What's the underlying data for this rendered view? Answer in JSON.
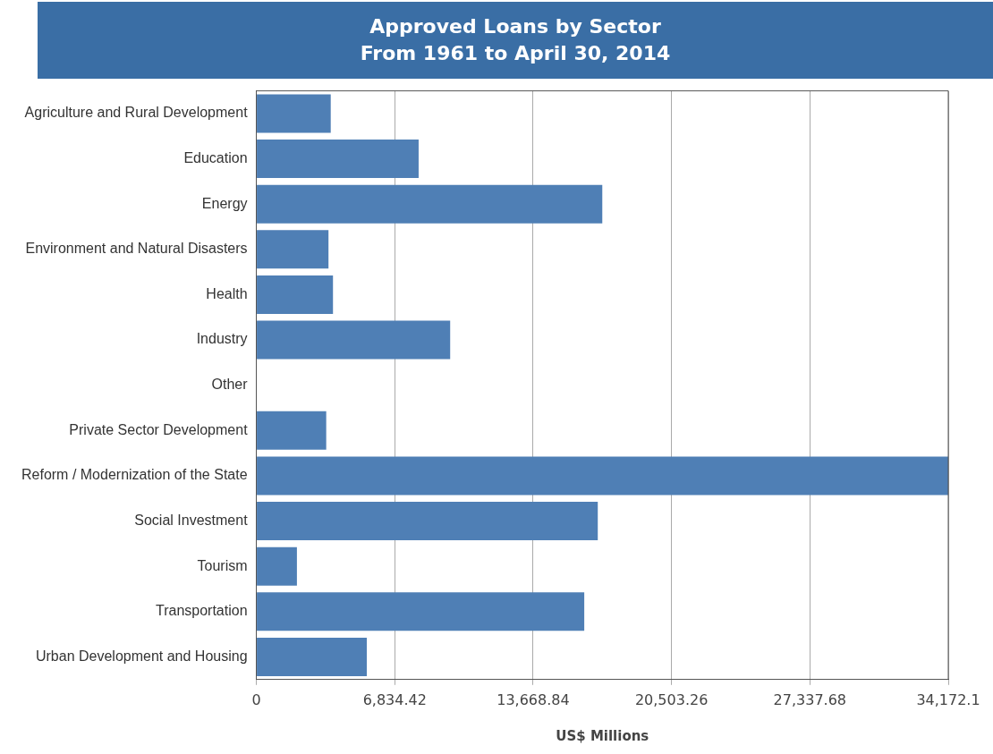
{
  "chart_data": {
    "type": "bar",
    "orientation": "horizontal",
    "title": "Approved Loans by Sector",
    "subtitle": "From 1961 to April 30, 2014",
    "xlabel": "US$ Millions",
    "categories": [
      "Agriculture and Rural Development",
      "Education",
      "Energy",
      "Environment and Natural Disasters",
      "Health",
      "Industry",
      "Other",
      "Private Sector Development",
      "Reform / Modernization of the State",
      "Social Investment",
      "Tourism",
      "Transportation",
      "Urban Development and Housing"
    ],
    "values": [
      3673,
      8014,
      17085,
      3562,
      3784,
      9572,
      0,
      3450,
      34172.1,
      16862,
      2003,
      16194,
      5454
    ],
    "color": "#4f7fb5",
    "xlim": [
      0,
      34172.1
    ],
    "xticks": [
      0,
      {
        "value": 6834.42,
        "label": "6,834.42"
      },
      {
        "value": 13668.84,
        "label": "13,668.84"
      },
      {
        "value": 20503.26,
        "label": "20,503.26"
      },
      {
        "value": 27337.68,
        "label": "27,337.68"
      },
      {
        "value": 34172.1,
        "label": "34,172.1"
      }
    ],
    "grid": "x",
    "legend": false
  }
}
